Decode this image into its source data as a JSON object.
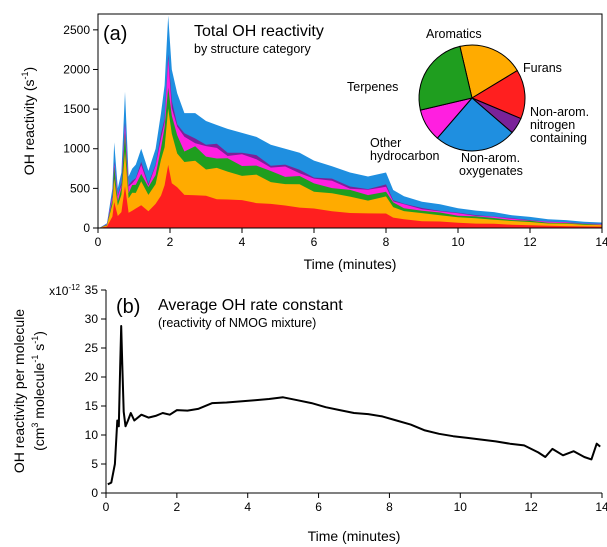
{
  "chart_data": [
    {
      "type": "area",
      "panel_label": "(a)",
      "title": "Total OH reactivity",
      "subtitle": "by structure category",
      "xlabel": "Time (minutes)",
      "ylabel": "OH reactivity (s",
      "ylabel_sup": "-1",
      "ylabel_end": ")",
      "xlim": [
        0,
        14
      ],
      "ylim": [
        0,
        2700
      ],
      "xticks": [
        "0",
        "2",
        "4",
        "6",
        "8",
        "10",
        "12",
        "14"
      ],
      "yticks": [
        "0",
        "500",
        "1000",
        "1500",
        "2000",
        "2500"
      ],
      "stack_order": [
        "Furans",
        "Aromatics",
        "Terpenes",
        "Other hydrocarbon",
        "Non-arom. nitrogen containing",
        "Non-arom. oxygenates"
      ],
      "series_colors": {
        "Furans": "#ff1f1f",
        "Aromatics": "#ffab00",
        "Terpenes": "#1f9e1f",
        "Other hydrocarbon": "#ff1fe0",
        "Non-arom. nitrogen containing": "#7a2299",
        "Non-arom. oxygenates": "#1f8fe0"
      },
      "x": [
        0.05,
        0.25,
        0.4,
        0.45,
        0.55,
        0.65,
        0.75,
        0.85,
        0.95,
        1.05,
        1.2,
        1.4,
        1.6,
        1.75,
        1.85,
        1.95,
        2.05,
        2.2,
        2.4,
        2.7,
        3.0,
        3.3,
        3.6,
        4.0,
        4.4,
        4.8,
        5.2,
        5.6,
        6.0,
        6.5,
        7.0,
        7.5,
        8.0,
        8.2,
        8.5,
        9.0,
        9.5,
        10.0,
        10.5,
        11.0,
        11.5,
        12.0,
        12.5,
        13.0,
        13.5,
        14.0
      ],
      "totals": [
        5,
        60,
        500,
        1080,
        500,
        700,
        1720,
        650,
        750,
        800,
        1000,
        720,
        1000,
        1450,
        1800,
        2680,
        2000,
        1700,
        1450,
        1450,
        1350,
        1300,
        1250,
        1200,
        1150,
        1050,
        1000,
        950,
        850,
        780,
        700,
        650,
        700,
        480,
        400,
        330,
        300,
        250,
        220,
        200,
        160,
        140,
        110,
        100,
        80,
        70
      ],
      "pie": {
        "slices": [
          {
            "name": "Aromatics",
            "label": "Aromatics",
            "value": 20
          },
          {
            "name": "Furans",
            "label": "Furans",
            "value": 15
          },
          {
            "name": "Non-arom. nitrogen containing",
            "label_lines": [
              "Non-arom.",
              "nitrogen",
              "containing"
            ],
            "value": 5
          },
          {
            "name": "Non-arom. oxygenates",
            "label_lines": [
              "Non-arom.",
              "oxygenates"
            ],
            "value": 25
          },
          {
            "name": "Other hydrocarbon",
            "label_lines": [
              "Other",
              "hydrocarbon"
            ],
            "value": 10
          },
          {
            "name": "Terpenes",
            "label": "Terpenes",
            "value": 25
          }
        ]
      }
    },
    {
      "type": "line",
      "panel_label": "(b)",
      "title": "Average OH rate constant",
      "subtitle": "(reactivity of NMOG mixture)",
      "xlabel": "Time (minutes)",
      "ylabel_line1": "OH reactivity per molecule",
      "ylabel_line2": "(cm",
      "ylabel_line2_sup": "3",
      "ylabel_line2_mid": " molecule",
      "ylabel_line2_sup2": "-1",
      "ylabel_line2_mid2": " s",
      "ylabel_line2_sup3": "-1",
      "ylabel_line2_end": ")",
      "xlim": [
        0,
        14
      ],
      "ylim": [
        0,
        35
      ],
      "exponent_label": "x10",
      "exponent_sup": "-12",
      "xticks": [
        "0",
        "2",
        "4",
        "6",
        "8",
        "10",
        "12",
        "14"
      ],
      "yticks": [
        "0",
        "5",
        "10",
        "15",
        "20",
        "25",
        "30",
        "35"
      ],
      "series": [
        {
          "name": "",
          "color": "#000000",
          "x": [
            0.05,
            0.15,
            0.25,
            0.32,
            0.36,
            0.4,
            0.43,
            0.46,
            0.5,
            0.55,
            0.62,
            0.7,
            0.8,
            1.0,
            1.2,
            1.4,
            1.6,
            1.8,
            2.0,
            2.3,
            2.6,
            3.0,
            3.4,
            3.8,
            4.2,
            4.6,
            5.0,
            5.4,
            5.8,
            6.2,
            6.6,
            7.0,
            7.4,
            7.8,
            8.2,
            8.6,
            9.0,
            9.4,
            9.8,
            10.2,
            10.6,
            11.0,
            11.4,
            11.8,
            12.2,
            12.4,
            12.6,
            12.9,
            13.2,
            13.5,
            13.7,
            13.85,
            13.95
          ],
          "y": [
            1.5,
            1.8,
            5.0,
            12.5,
            11.5,
            22.0,
            28.8,
            22.0,
            14.0,
            11.5,
            12.5,
            13.8,
            12.5,
            13.5,
            13.0,
            13.3,
            13.8,
            13.5,
            14.3,
            14.2,
            14.5,
            15.5,
            15.6,
            15.8,
            16.0,
            16.2,
            16.5,
            16.0,
            15.5,
            14.8,
            14.3,
            13.8,
            13.6,
            13.2,
            12.5,
            11.8,
            10.8,
            10.2,
            9.8,
            9.5,
            9.2,
            8.9,
            8.5,
            8.2,
            7.0,
            6.2,
            7.6,
            6.5,
            7.2,
            6.2,
            5.8,
            8.5,
            8.0
          ]
        }
      ]
    }
  ]
}
